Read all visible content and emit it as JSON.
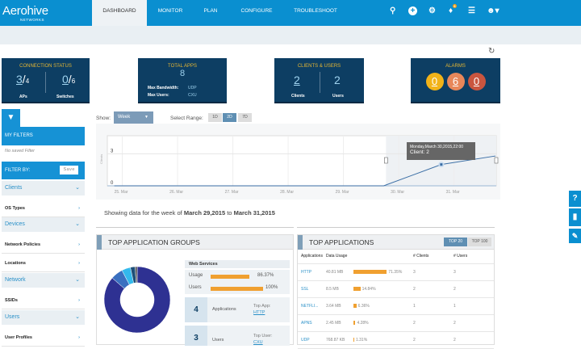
{
  "header": {
    "logo": "Aerohive",
    "logo_sub": "NETWORKS",
    "nav": [
      "DASHBOARD",
      "MONITOR",
      "PLAN",
      "CONFIGURE",
      "TROUBLESHOOT"
    ],
    "active": "DASHBOARD",
    "notification_count": "6",
    "icons": [
      "search-icon",
      "add-icon",
      "gear-icon",
      "bell-icon",
      "list-icon",
      "user-icon"
    ]
  },
  "cards": {
    "connection": {
      "title": "CONNECTION STATUS",
      "aps_num": "3",
      "aps_den": "4",
      "aps_label": "APs",
      "sw_num": "0",
      "sw_den": "6",
      "sw_label": "Switches"
    },
    "apps": {
      "title": "TOTAL APPS",
      "value": "8",
      "bw_label": "Max Bandwidth:",
      "bw_value": "UDP",
      "users_label": "Max Users:",
      "users_value": "CXU"
    },
    "clients": {
      "title": "CLIENTS & USERS",
      "clients": "2",
      "clients_label": "Clients",
      "users": "2",
      "users_label": "Users"
    },
    "alarms": {
      "title": "ALARMS",
      "values": [
        "0",
        "6",
        "0"
      ],
      "colors": [
        "#f2b319",
        "#e8875a",
        "#c9553f"
      ]
    }
  },
  "sidebar": {
    "my_filters": "MY FILTERS",
    "no_filter": "No saved Filter",
    "filter_by": "FILTER BY:",
    "save": "Save",
    "items": [
      {
        "label": "Clients",
        "type": "group"
      },
      {
        "label": "OS Types",
        "type": "item"
      },
      {
        "label": "Devices",
        "type": "group"
      },
      {
        "label": "Network Policies",
        "type": "item"
      },
      {
        "label": "Locations",
        "type": "item"
      },
      {
        "label": "Network",
        "type": "group"
      },
      {
        "label": "SSIDs",
        "type": "item"
      },
      {
        "label": "Users",
        "type": "group"
      },
      {
        "label": "User Profiles",
        "type": "item"
      }
    ]
  },
  "controls": {
    "show_label": "Show:",
    "show_value": "Week",
    "range_label": "Select Range:",
    "ranges": [
      "1D",
      "2D",
      "7D"
    ],
    "active_range": "2D"
  },
  "chart_data": {
    "type": "line",
    "ylabel": "Clients",
    "yticks": [
      0,
      3
    ],
    "ylim": [
      0,
      4.7
    ],
    "xticks": [
      "25. Mar",
      "26. Mar",
      "27. Mar",
      "28. Mar",
      "29. Mar",
      "30. Mar",
      "31. Mar"
    ],
    "x": [
      "2015-03-25 00:00",
      "2015-03-29 21:00",
      "2015-03-30 22:00",
      "2015-03-31 22:00"
    ],
    "y": [
      0,
      0,
      2,
      2.8
    ],
    "tooltip": {
      "line1": "Monday,March 30,2015,22:00",
      "line2": "Client: 2"
    },
    "grid": true,
    "selected_window": [
      "2015-03-29 22:00",
      "2015-03-31 23:00"
    ]
  },
  "summary": {
    "prefix": "Showing data for the week of",
    "start": "March 29,2015",
    "mid": "to",
    "end": "March 31,2015"
  },
  "groups": {
    "title": "TOP APPLICATION GROUPS",
    "group": "Web Services",
    "usage_label": "Usage",
    "usage": "86.37%",
    "usage_pct": 86.37,
    "users_label": "Users",
    "users": "100%",
    "users_pct": 100,
    "apps_count": "4",
    "apps_label": "Applications",
    "top_app_label": "Top App:",
    "top_app": "HTTP",
    "users_count": "3",
    "users_label2": "Users",
    "top_user_label": "Top User:",
    "top_user": "CXU",
    "donut": [
      {
        "value": 86.37,
        "color": "#2e3192"
      },
      {
        "value": 6,
        "color": "#3a70c0"
      },
      {
        "value": 4.3,
        "color": "#33b9ec"
      },
      {
        "value": 2.3,
        "color": "#1d4f78"
      },
      {
        "value": 1,
        "color": "#555"
      }
    ]
  },
  "top_apps": {
    "title": "TOP APPLICATIONS",
    "tabs": [
      "TOP 20",
      "TOP 100"
    ],
    "active_tab": "TOP 20",
    "columns": [
      "Applications",
      "Data Usage",
      "# Clients",
      "# Users"
    ],
    "rows": [
      {
        "app": "HTTP",
        "usage": "40.81 MB",
        "pct": "71.35%",
        "pct_v": 71.35,
        "clients": "3",
        "users": "3"
      },
      {
        "app": "SSL",
        "usage": "8.5 MB",
        "pct": "14.84%",
        "pct_v": 14.84,
        "clients": "2",
        "users": "2"
      },
      {
        "app": "NETFLI...",
        "usage": "3.64 MB",
        "pct": "6.36%",
        "pct_v": 6.36,
        "clients": "1",
        "users": "1"
      },
      {
        "app": "APNS",
        "usage": "2.45 MB",
        "pct": "4.28%",
        "pct_v": 4.28,
        "clients": "2",
        "users": "2"
      },
      {
        "app": "UDP",
        "usage": "768.87 KB",
        "pct": "1.31%",
        "pct_v": 1.31,
        "clients": "2",
        "users": "2"
      }
    ]
  },
  "help": {
    "icons": [
      "help-icon",
      "feedback-icon",
      "edit-icon"
    ],
    "labels": [
      "?"
    ]
  }
}
